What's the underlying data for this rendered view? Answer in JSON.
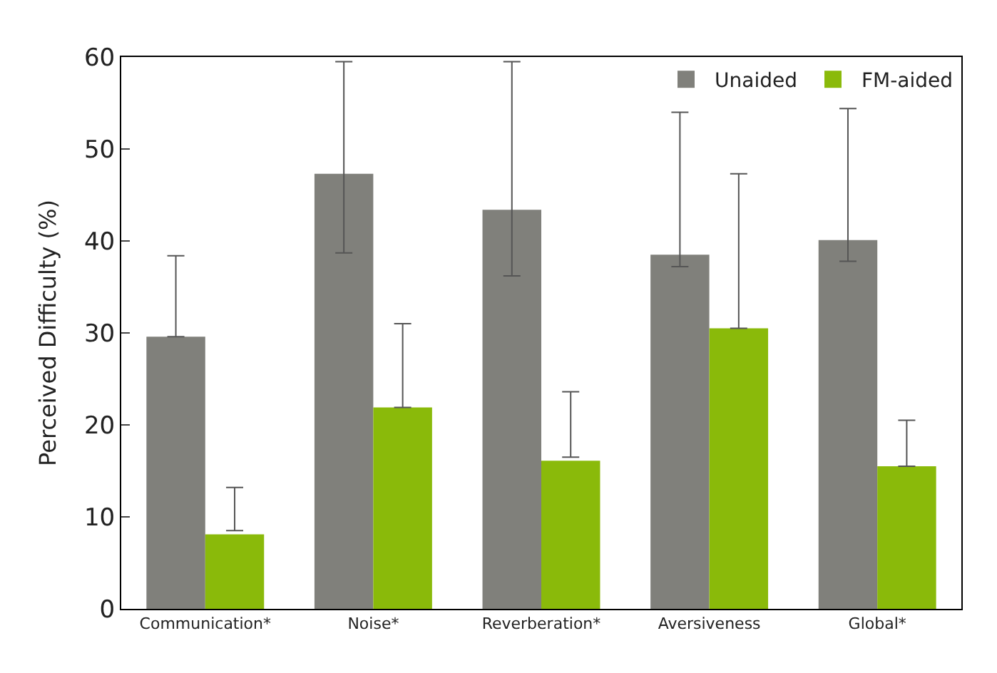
{
  "chart_data": {
    "type": "bar",
    "ylabel": "Perceived Difficulty (%)",
    "categories": [
      "Communication*",
      "Noise*",
      "Reverberation*",
      "Aversiveness",
      "Global*"
    ],
    "series": [
      {
        "name": "Unaided",
        "color": "#80807b",
        "values": [
          29.6,
          47.3,
          43.4,
          38.5,
          40.1
        ],
        "errors": [
          [
            29.6,
            38.4
          ],
          [
            38.7,
            59.5
          ],
          [
            36.2,
            59.5
          ],
          [
            37.2,
            54.0
          ],
          [
            37.8,
            54.4
          ]
        ]
      },
      {
        "name": "FM-aided",
        "color": "#8aba0a",
        "values": [
          8.1,
          21.9,
          16.1,
          30.5,
          15.5
        ],
        "errors": [
          [
            8.5,
            13.2
          ],
          [
            21.9,
            31.0
          ],
          [
            16.5,
            23.6
          ],
          [
            30.5,
            47.3
          ],
          [
            15.5,
            20.5
          ]
        ]
      }
    ],
    "ylim": [
      0,
      60
    ],
    "yticks": [
      0,
      10,
      20,
      30,
      40,
      50,
      60
    ],
    "legend": "top right"
  }
}
